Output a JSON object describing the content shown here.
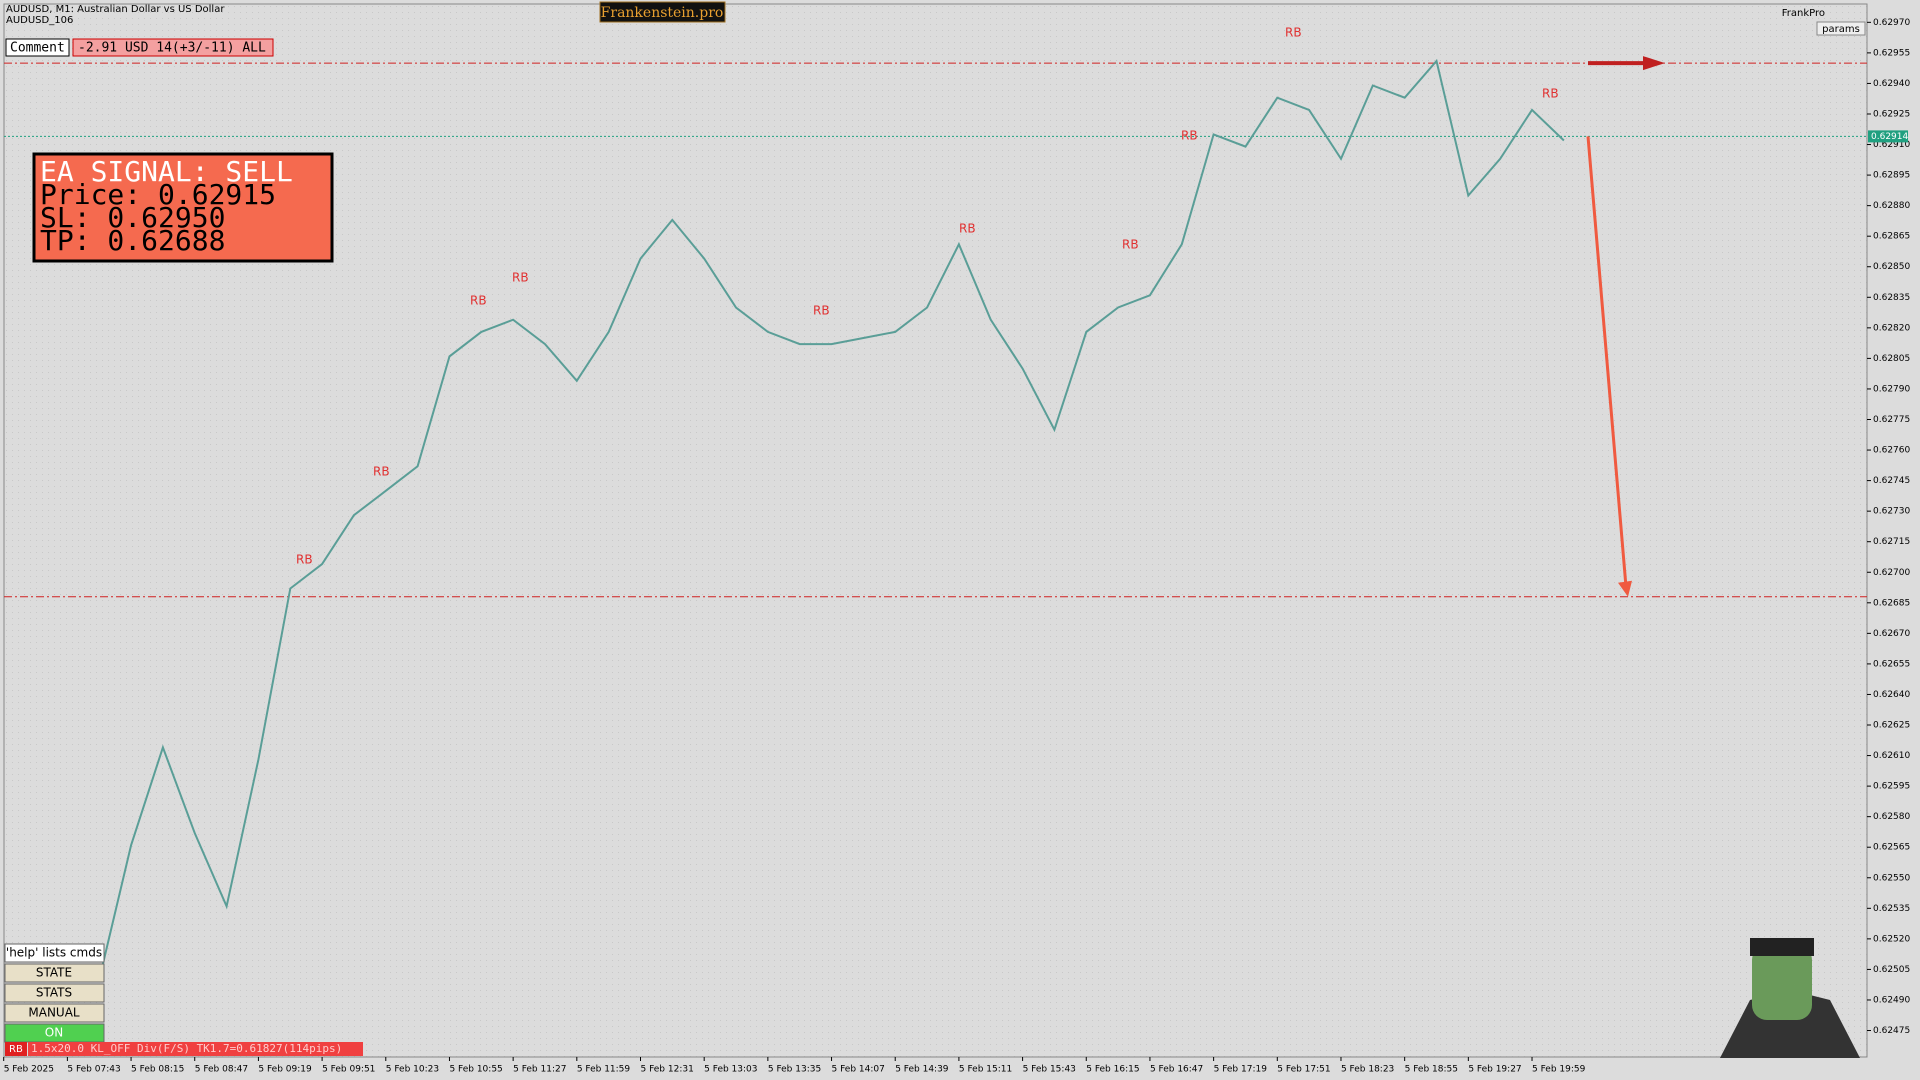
{
  "header": {
    "symbol": "AUDUSD, M1:  Australian Dollar vs US Dollar",
    "account": "AUDUSD_106",
    "banner": "Frankenstein.pro",
    "brand": "FrankPro",
    "params": "params"
  },
  "comment": {
    "label": "Comment",
    "text": "-2.91 USD 14(+3/-11) ALL"
  },
  "signal": {
    "lines": [
      "EA SIGNAL: SELL",
      "Price: 0.62915",
      "SL:     0.62950",
      "TP:     0.62688"
    ]
  },
  "buttons": [
    "'help' lists cmds",
    "STATE",
    "STATS",
    "MANUAL",
    "ON"
  ],
  "status": {
    "tag": "RB",
    "text": "1.5x20.0 KL_OFF Div(F/S) TK1.7=0.61827(114pips)"
  },
  "marker_label": "RB",
  "chart_data": {
    "type": "line",
    "categories": [
      "5 Feb 2025",
      null,
      "5 Feb 07:43",
      null,
      "5 Feb 08:15",
      null,
      "5 Feb 08:47",
      null,
      "5 Feb 09:19",
      null,
      "5 Feb 09:51",
      null,
      "5 Feb 10:23",
      null,
      "5 Feb 10:55",
      null,
      "5 Feb 11:27",
      null,
      "5 Feb 11:59",
      null,
      "5 Feb 12:31",
      null,
      "5 Feb 13:03",
      null,
      "5 Feb 13:35",
      null,
      "5 Feb 14:07",
      null,
      "5 Feb 14:39",
      null,
      "5 Feb 15:11",
      null,
      "5 Feb 15:43",
      null,
      "5 Feb 16:15",
      null,
      "5 Feb 16:47",
      null,
      "5 Feb 17:19",
      null,
      "5 Feb 17:51",
      null,
      "5 Feb 18:23",
      null,
      "5 Feb 18:55",
      null,
      "5 Feb 19:27",
      null,
      "5 Feb 19:59",
      null,
      null,
      null,
      null,
      null,
      null,
      null,
      null,
      null,
      null
    ],
    "series": [
      {
        "name": "AUDUSD",
        "color": "#5a9e97",
        "values": [
          null,
          null,
          null,
          0.625,
          0.62566,
          0.62614,
          0.62572,
          0.62536,
          0.62608,
          0.62692,
          0.62704,
          0.62728,
          0.6274,
          0.62752,
          0.62806,
          0.62818,
          0.62824,
          0.62812,
          0.62794,
          0.62818,
          0.62854,
          0.62873,
          0.62854,
          0.6283,
          0.62818,
          0.62812,
          0.62812,
          0.62815,
          0.62818,
          0.6283,
          0.62861,
          0.62824,
          0.628,
          0.6277,
          0.62818,
          0.6283,
          0.62836,
          0.62861,
          0.62915,
          0.62909,
          0.62933,
          0.62927,
          0.62903,
          0.62939,
          0.62933,
          0.62951,
          0.62885,
          0.62903,
          0.62927,
          0.62912,
          null,
          null,
          null,
          null,
          null,
          null,
          null,
          null,
          null
        ]
      }
    ],
    "ylim": [
      0.62462,
      0.62979
    ],
    "yticks": [
      {
        "value": 0.6297,
        "label": "0.62970"
      },
      {
        "value": 0.62955,
        "label": "0.62955"
      },
      {
        "value": 0.6294,
        "label": "0.62940"
      },
      {
        "value": 0.62925,
        "label": "0.62925"
      },
      {
        "value": 0.6291,
        "label": "0.62910"
      },
      {
        "value": 0.62895,
        "label": "0.62895"
      },
      {
        "value": 0.6288,
        "label": "0.62880"
      },
      {
        "value": 0.62865,
        "label": "0.62865"
      },
      {
        "value": 0.6285,
        "label": "0.62850"
      },
      {
        "value": 0.62835,
        "label": "0.62835"
      },
      {
        "value": 0.6282,
        "label": "0.62820"
      },
      {
        "value": 0.62805,
        "label": "0.62805"
      },
      {
        "value": 0.6279,
        "label": "0.62790"
      },
      {
        "value": 0.62775,
        "label": "0.62775"
      },
      {
        "value": 0.6276,
        "label": "0.62760"
      },
      {
        "value": 0.62745,
        "label": "0.62745"
      },
      {
        "value": 0.6273,
        "label": "0.62730"
      },
      {
        "value": 0.62715,
        "label": "0.62715"
      },
      {
        "value": 0.627,
        "label": "0.62700"
      },
      {
        "value": 0.62685,
        "label": "0.62685"
      },
      {
        "value": 0.6267,
        "label": "0.62670"
      },
      {
        "value": 0.62655,
        "label": "0.62655"
      },
      {
        "value": 0.6264,
        "label": "0.62640"
      },
      {
        "value": 0.62625,
        "label": "0.62625"
      },
      {
        "value": 0.6261,
        "label": "0.62610"
      },
      {
        "value": 0.62595,
        "label": "0.62595"
      },
      {
        "value": 0.6258,
        "label": "0.62580"
      },
      {
        "value": 0.62565,
        "label": "0.62565"
      },
      {
        "value": 0.6255,
        "label": "0.62550"
      },
      {
        "value": 0.62535,
        "label": "0.62535"
      },
      {
        "value": 0.6252,
        "label": "0.62520"
      },
      {
        "value": 0.62505,
        "label": "0.62505"
      },
      {
        "value": 0.6249,
        "label": "0.62490"
      },
      {
        "value": 0.62475,
        "label": "0.62475"
      }
    ],
    "current_price": {
      "value": 0.62914,
      "label": "0.62914"
    },
    "sl_level": 0.6295,
    "tp_level": 0.62688,
    "grid": true
  }
}
